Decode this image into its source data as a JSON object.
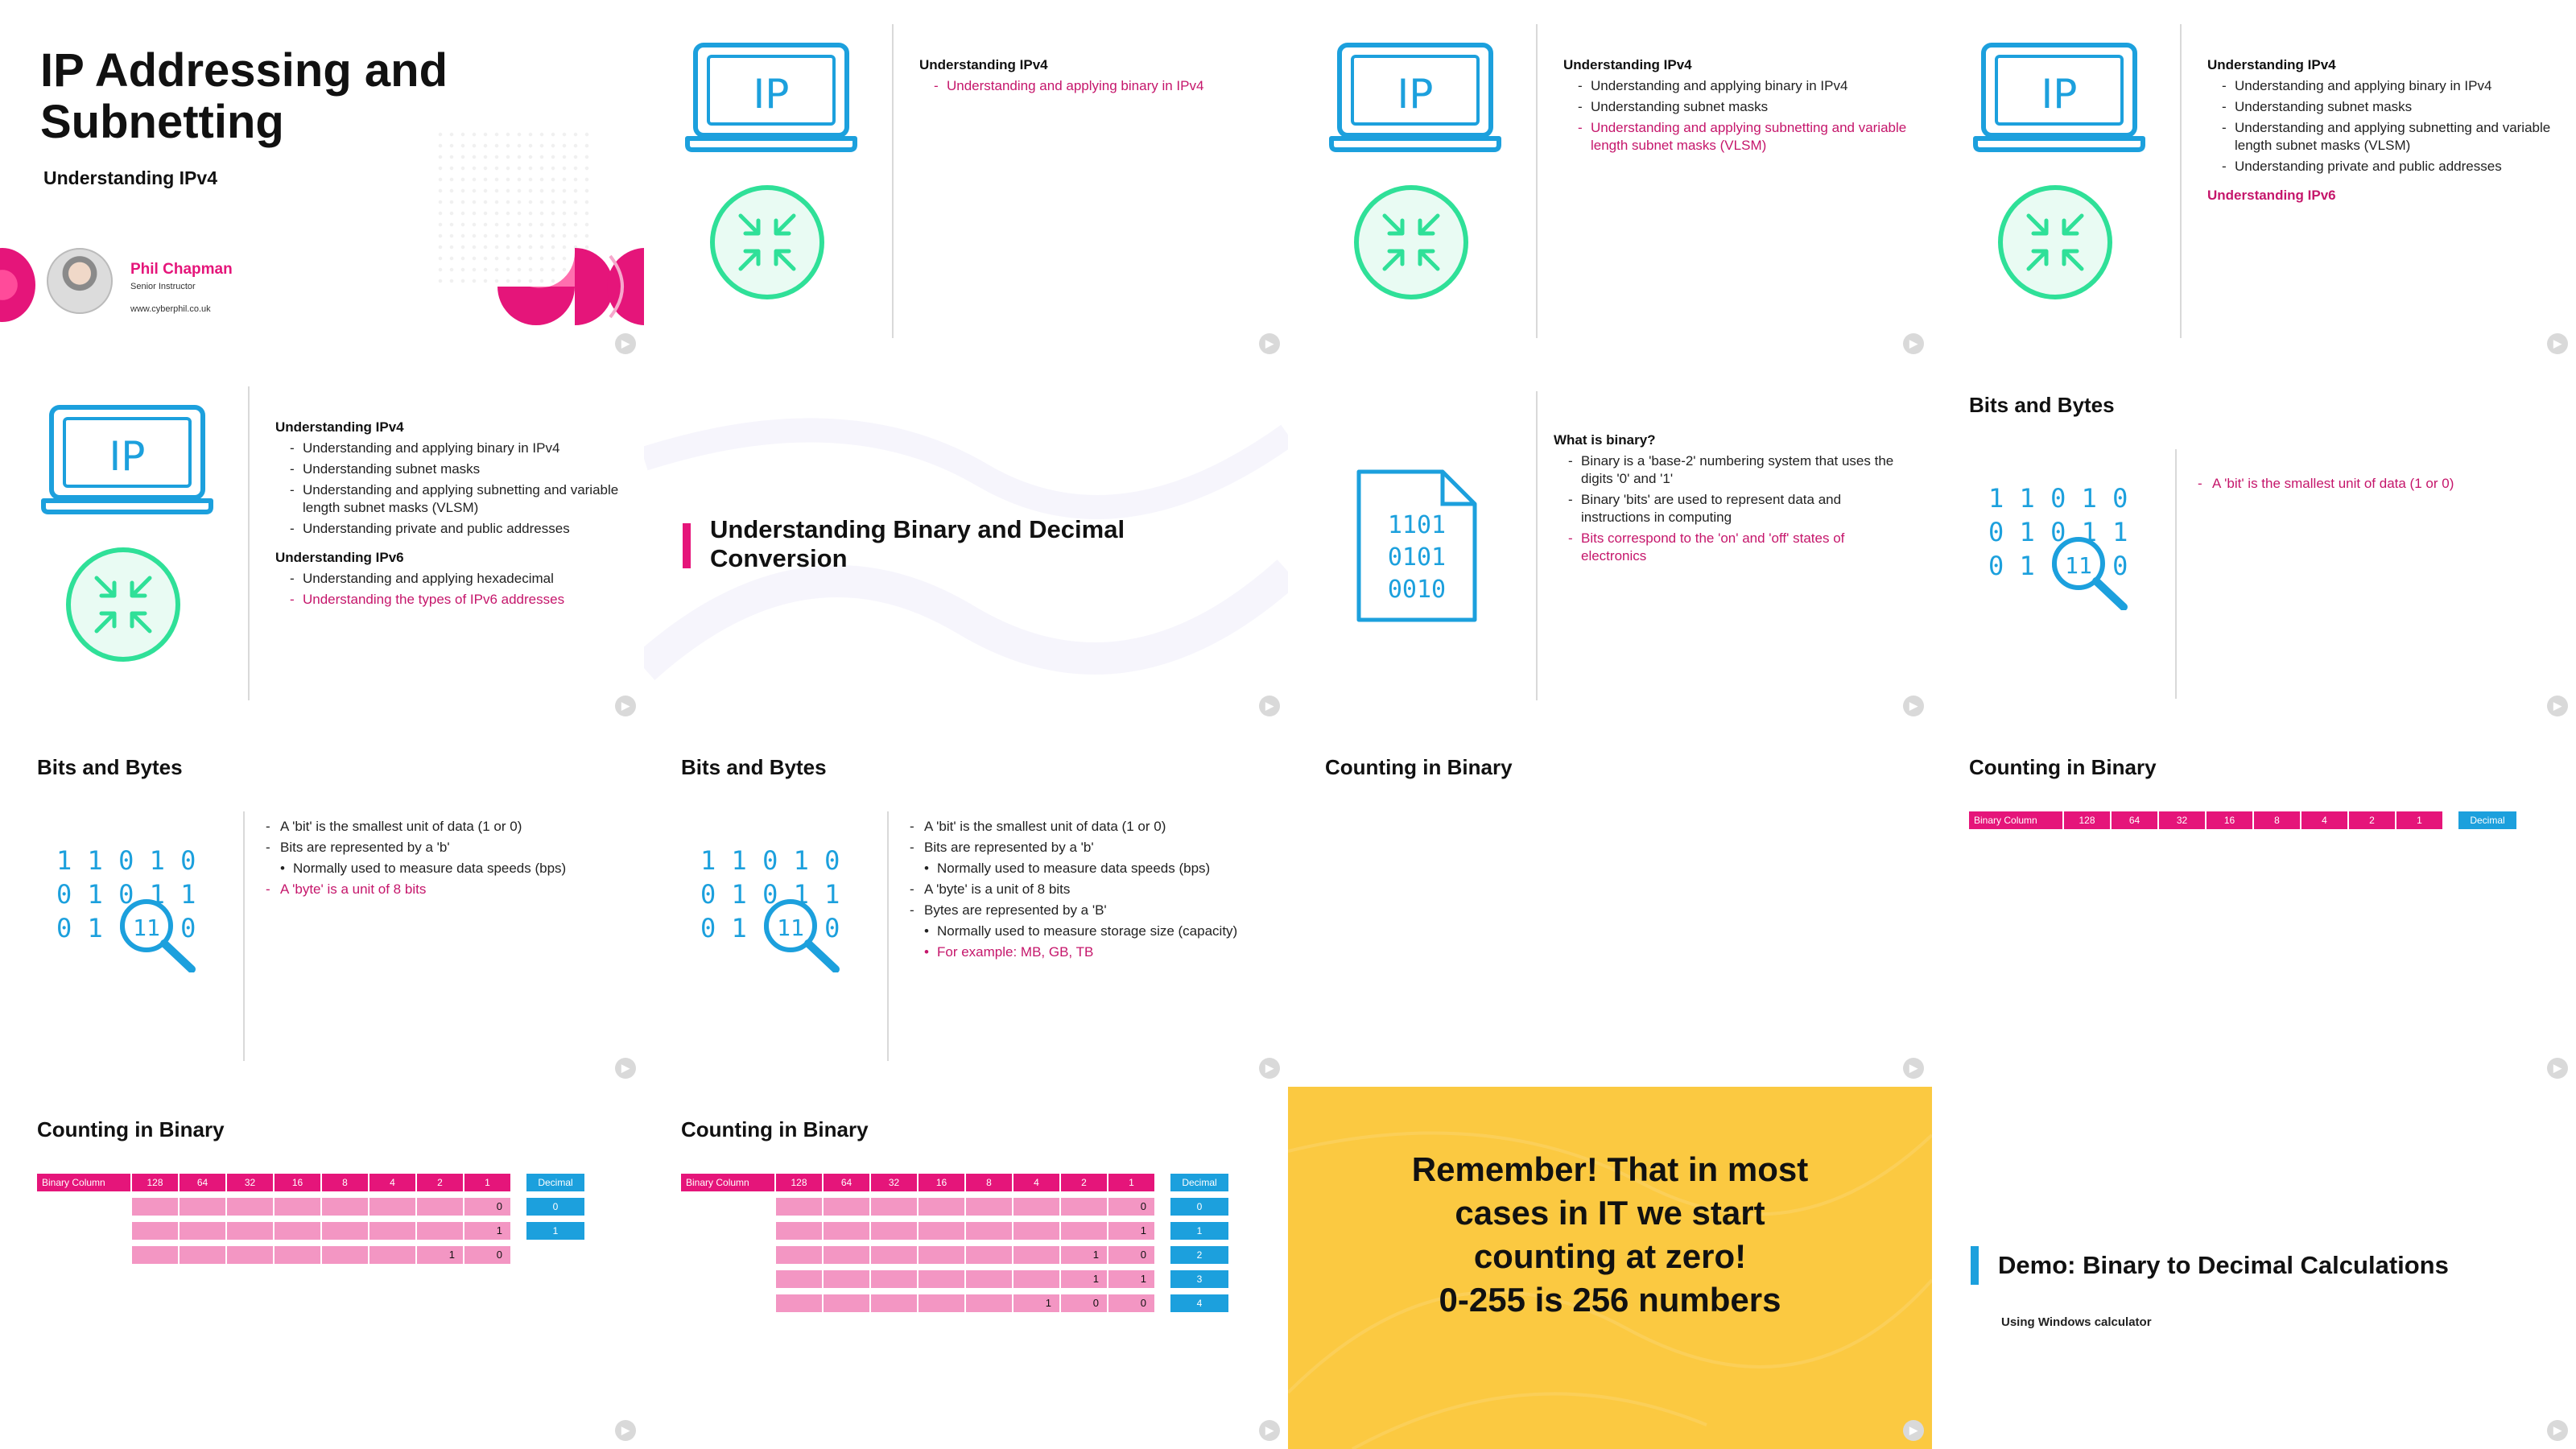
{
  "slides": {
    "s1": {
      "title": "IP Addressing and Subnetting",
      "subtitle": "Understanding IPv4",
      "presenter_name": "Phil Chapman",
      "presenter_role": "Senior Instructor",
      "presenter_url": "www.cyberphil.co.uk"
    },
    "s2": {
      "heading": "Understanding IPv4",
      "items": [
        "Understanding and applying binary in IPv4"
      ]
    },
    "s3": {
      "heading": "Understanding IPv4",
      "items": [
        "Understanding and applying binary in IPv4",
        "Understanding subnet masks",
        "Understanding and applying subnetting and variable length subnet masks (VLSM)"
      ]
    },
    "s4": {
      "heading": "Understanding IPv4",
      "items": [
        "Understanding and applying binary in IPv4",
        "Understanding subnet masks",
        "Understanding and applying subnetting and variable length subnet masks (VLSM)",
        "Understanding private and public addresses"
      ],
      "heading2": "Understanding IPv6"
    },
    "s5": {
      "heading": "Understanding IPv4",
      "items": [
        "Understanding and applying binary in IPv4",
        "Understanding subnet masks",
        "Understanding and applying subnetting and variable length subnet masks (VLSM)",
        "Understanding private and public addresses"
      ],
      "heading2": "Understanding IPv6",
      "items2": [
        "Understanding and applying hexadecimal",
        "Understanding the types of IPv6 addresses"
      ]
    },
    "s6": {
      "title": "Understanding Binary and Decimal Conversion"
    },
    "s7": {
      "heading": "What is binary?",
      "items": [
        "Binary is a 'base-2' numbering system that uses the digits '0' and '1'",
        "Binary 'bits' are used to represent data and instructions in computing",
        "Bits correspond to the 'on' and 'off' states of electronics"
      ]
    },
    "s8": {
      "title": "Bits and Bytes",
      "items": [
        "A 'bit' is the smallest unit of data (1 or 0)"
      ]
    },
    "s9": {
      "title": "Bits and Bytes",
      "items": [
        "A 'bit' is the smallest unit of data (1 or 0)",
        "Bits are represented by a 'b'",
        "Normally used to measure data speeds (bps)",
        "A 'byte' is a unit of 8 bits"
      ]
    },
    "s10": {
      "title": "Bits and Bytes",
      "items": [
        "A 'bit' is the smallest unit of data (1 or 0)",
        "Bits are represented by a 'b'",
        "Normally used to measure data speeds (bps)",
        "A 'byte' is a unit of 8 bits",
        "Bytes are represented by a 'B'",
        "Normally used to measure storage size (capacity)",
        "For example: MB, GB, TB"
      ]
    },
    "s11": {
      "title": "Counting in Binary"
    },
    "s12": {
      "title": "Counting in Binary",
      "header_label": "Binary Column",
      "columns": [
        "128",
        "64",
        "32",
        "16",
        "8",
        "4",
        "2",
        "1"
      ],
      "decimal_label": "Decimal"
    },
    "s13": {
      "title": "Counting in Binary",
      "header_label": "Binary Column",
      "columns": [
        "128",
        "64",
        "32",
        "16",
        "8",
        "4",
        "2",
        "1"
      ],
      "decimal_label": "Decimal",
      "rows": [
        {
          "bits": [
            "",
            "",
            "",
            "",
            "",
            "",
            "",
            "0"
          ],
          "decimal": "0"
        },
        {
          "bits": [
            "",
            "",
            "",
            "",
            "",
            "",
            "",
            "1"
          ],
          "decimal": "1"
        },
        {
          "bits": [
            "",
            "",
            "",
            "",
            "",
            "",
            "1",
            "0"
          ],
          "decimal": ""
        }
      ]
    },
    "s14": {
      "title": "Counting in Binary",
      "header_label": "Binary Column",
      "columns": [
        "128",
        "64",
        "32",
        "16",
        "8",
        "4",
        "2",
        "1"
      ],
      "decimal_label": "Decimal",
      "rows": [
        {
          "bits": [
            "",
            "",
            "",
            "",
            "",
            "",
            "",
            "0"
          ],
          "decimal": "0"
        },
        {
          "bits": [
            "",
            "",
            "",
            "",
            "",
            "",
            "",
            "1"
          ],
          "decimal": "1"
        },
        {
          "bits": [
            "",
            "",
            "",
            "",
            "",
            "",
            "1",
            "0"
          ],
          "decimal": "2"
        },
        {
          "bits": [
            "",
            "",
            "",
            "",
            "",
            "",
            "1",
            "1"
          ],
          "decimal": "3"
        },
        {
          "bits": [
            "",
            "",
            "",
            "",
            "",
            "1",
            "0",
            "0"
          ],
          "decimal": "4"
        }
      ]
    },
    "s15": {
      "lines": [
        "Remember! That in most",
        "cases in IT we start",
        "counting at zero!",
        "0-255 is 256 numbers"
      ]
    },
    "s16": {
      "title": "Demo: Binary to Decimal Calculations",
      "subtitle": "Using Windows calculator"
    }
  },
  "icons": {
    "laptop": "laptop-ip-icon",
    "arrows": "arrows-in-circle-icon",
    "file": "binary-file-icon",
    "search": "binary-search-icon",
    "play": "play-icon"
  },
  "colors": {
    "pink": "#e5157a",
    "pink_text": "#c5166b",
    "pink_light": "#f396c3",
    "blue": "#1ca0dd",
    "green": "#2fe098",
    "yellow": "#fbc941"
  },
  "corner_button": "▶"
}
